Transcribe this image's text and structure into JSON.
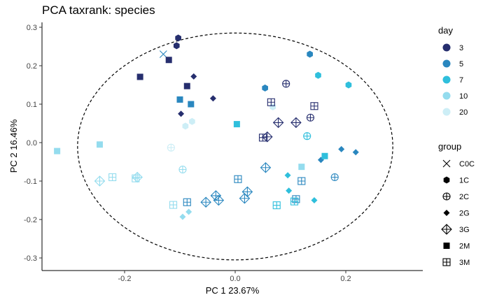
{
  "chart_data": {
    "type": "scatter",
    "title": "PCA taxrank: species",
    "xlabel": "PC 1 23.67%",
    "ylabel": "PC 2 16.46%",
    "xlim": [
      -0.35,
      0.35
    ],
    "ylim": [
      -0.33,
      0.33
    ],
    "xticks": [
      -0.2,
      0.0,
      0.2
    ],
    "yticks": [
      -0.3,
      -0.2,
      -0.1,
      0.0,
      0.1,
      0.2,
      0.3
    ],
    "xtick_labels": [
      "-0.2",
      "0.0",
      "0.2"
    ],
    "ytick_labels": [
      "-0.3",
      "-0.2",
      "-0.1",
      "0.0",
      "0.1",
      "0.2",
      "0.3"
    ],
    "grid": false,
    "ellipse": {
      "cx": 0.0,
      "cy": -0.01,
      "rx": 0.285,
      "ry": 0.295,
      "style": "dashed"
    },
    "legend": {
      "position": "right",
      "color_title": "day",
      "shape_title": "group",
      "colors": [
        {
          "label": "3",
          "color": "#262e6e"
        },
        {
          "label": "5",
          "color": "#2a87bf"
        },
        {
          "label": "7",
          "color": "#2fbfdc"
        },
        {
          "label": "10",
          "color": "#94dcee"
        },
        {
          "label": "20",
          "color": "#cdeef6"
        }
      ],
      "shapes": [
        {
          "label": "C0C",
          "shape": "cross"
        },
        {
          "label": "1C",
          "shape": "hexagon"
        },
        {
          "label": "2C",
          "shape": "circle-plus"
        },
        {
          "label": "2G",
          "shape": "diamond"
        },
        {
          "label": "3G",
          "shape": "diamond-plus"
        },
        {
          "label": "2M",
          "shape": "square"
        },
        {
          "label": "3M",
          "shape": "square-plus"
        }
      ]
    },
    "points": [
      {
        "x": -0.13,
        "y": 0.23,
        "group": "C0C",
        "day": "5"
      },
      {
        "x": -0.103,
        "y": 0.272,
        "group": "1C",
        "day": "3"
      },
      {
        "x": -0.106,
        "y": 0.252,
        "group": "1C",
        "day": "3"
      },
      {
        "x": 0.135,
        "y": 0.23,
        "group": "1C",
        "day": "5"
      },
      {
        "x": 0.054,
        "y": 0.142,
        "group": "1C",
        "day": "5"
      },
      {
        "x": 0.15,
        "y": 0.175,
        "group": "1C",
        "day": "7"
      },
      {
        "x": 0.205,
        "y": 0.15,
        "group": "1C",
        "day": "7"
      },
      {
        "x": -0.078,
        "y": 0.055,
        "group": "1C",
        "day": "20"
      },
      {
        "x": -0.09,
        "y": 0.043,
        "group": "1C",
        "day": "20"
      },
      {
        "x": 0.068,
        "y": 0.093,
        "group": "1C",
        "day": "20"
      },
      {
        "x": 0.092,
        "y": 0.153,
        "group": "2C",
        "day": "3"
      },
      {
        "x": 0.136,
        "y": 0.065,
        "group": "2C",
        "day": "3"
      },
      {
        "x": 0.18,
        "y": -0.09,
        "group": "2C",
        "day": "5"
      },
      {
        "x": 0.13,
        "y": 0.017,
        "group": "2C",
        "day": "7"
      },
      {
        "x": -0.095,
        "y": -0.07,
        "group": "2C",
        "day": "10"
      },
      {
        "x": -0.116,
        "y": -0.013,
        "group": "2C",
        "day": "20"
      },
      {
        "x": -0.075,
        "y": 0.172,
        "group": "2G",
        "day": "3"
      },
      {
        "x": -0.04,
        "y": 0.115,
        "group": "2G",
        "day": "3"
      },
      {
        "x": -0.098,
        "y": 0.075,
        "group": "2G",
        "day": "3"
      },
      {
        "x": 0.192,
        "y": -0.017,
        "group": "2G",
        "day": "5"
      },
      {
        "x": 0.218,
        "y": -0.025,
        "group": "2G",
        "day": "5"
      },
      {
        "x": 0.155,
        "y": -0.045,
        "group": "2G",
        "day": "5"
      },
      {
        "x": 0.095,
        "y": -0.085,
        "group": "2G",
        "day": "7"
      },
      {
        "x": 0.097,
        "y": -0.125,
        "group": "2G",
        "day": "7"
      },
      {
        "x": 0.143,
        "y": -0.15,
        "group": "2G",
        "day": "7"
      },
      {
        "x": -0.095,
        "y": -0.193,
        "group": "2G",
        "day": "10"
      },
      {
        "x": -0.084,
        "y": -0.18,
        "group": "2G",
        "day": "10"
      },
      {
        "x": 0.078,
        "y": 0.052,
        "group": "3G",
        "day": "3"
      },
      {
        "x": 0.11,
        "y": 0.052,
        "group": "3G",
        "day": "3"
      },
      {
        "x": 0.058,
        "y": 0.015,
        "group": "3G",
        "day": "3"
      },
      {
        "x": 0.055,
        "y": -0.065,
        "group": "3G",
        "day": "5"
      },
      {
        "x": -0.053,
        "y": -0.155,
        "group": "3G",
        "day": "5"
      },
      {
        "x": -0.035,
        "y": -0.138,
        "group": "3G",
        "day": "5"
      },
      {
        "x": -0.03,
        "y": -0.15,
        "group": "3G",
        "day": "5"
      },
      {
        "x": 0.017,
        "y": -0.145,
        "group": "3G",
        "day": "5"
      },
      {
        "x": 0.022,
        "y": -0.128,
        "group": "3G",
        "day": "5"
      },
      {
        "x": -0.245,
        "y": -0.1,
        "group": "3G",
        "day": "10"
      },
      {
        "x": -0.177,
        "y": -0.09,
        "group": "3G",
        "day": "10"
      },
      {
        "x": -0.172,
        "y": 0.171,
        "group": "2M",
        "day": "3"
      },
      {
        "x": -0.12,
        "y": 0.215,
        "group": "2M",
        "day": "3"
      },
      {
        "x": -0.087,
        "y": 0.147,
        "group": "2M",
        "day": "3"
      },
      {
        "x": -0.1,
        "y": 0.112,
        "group": "2M",
        "day": "5"
      },
      {
        "x": -0.08,
        "y": 0.1,
        "group": "2M",
        "day": "5"
      },
      {
        "x": 0.003,
        "y": 0.048,
        "group": "2M",
        "day": "7"
      },
      {
        "x": 0.162,
        "y": -0.035,
        "group": "2M",
        "day": "7"
      },
      {
        "x": -0.322,
        "y": -0.022,
        "group": "2M",
        "day": "10"
      },
      {
        "x": -0.245,
        "y": -0.005,
        "group": "2M",
        "day": "10"
      },
      {
        "x": 0.12,
        "y": -0.063,
        "group": "2M",
        "day": "10"
      },
      {
        "x": 0.065,
        "y": 0.105,
        "group": "3M",
        "day": "3"
      },
      {
        "x": 0.143,
        "y": 0.095,
        "group": "3M",
        "day": "3"
      },
      {
        "x": 0.05,
        "y": 0.013,
        "group": "3M",
        "day": "3"
      },
      {
        "x": 0.005,
        "y": -0.095,
        "group": "3M",
        "day": "5"
      },
      {
        "x": 0.12,
        "y": -0.1,
        "group": "3M",
        "day": "5"
      },
      {
        "x": 0.11,
        "y": -0.147,
        "group": "3M",
        "day": "5"
      },
      {
        "x": -0.087,
        "y": -0.155,
        "group": "3M",
        "day": "5"
      },
      {
        "x": 0.075,
        "y": -0.163,
        "group": "3M",
        "day": "7"
      },
      {
        "x": 0.107,
        "y": -0.153,
        "group": "3M",
        "day": "7"
      },
      {
        "x": -0.222,
        "y": -0.09,
        "group": "3M",
        "day": "10"
      },
      {
        "x": -0.18,
        "y": -0.093,
        "group": "3M",
        "day": "10"
      },
      {
        "x": -0.112,
        "y": -0.162,
        "group": "3M",
        "day": "10"
      }
    ]
  }
}
